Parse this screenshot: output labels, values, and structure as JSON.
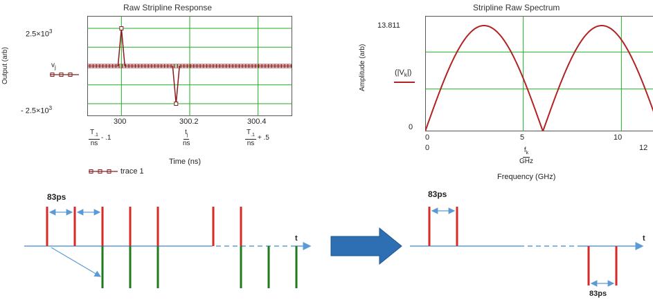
{
  "left_chart": {
    "title": "Raw Stripline Response",
    "ylabel": "Output (arb)",
    "xlabel": "Time (ns)",
    "y_top_label": "2.5×10",
    "y_top_exp": "3",
    "y_bottom_label": "- 2.5×10",
    "y_bottom_exp": "3",
    "trace_var": "v",
    "trace_var_sub": "j",
    "x_ticks": [
      "300",
      "300.2",
      "300.4"
    ],
    "x_expr_left_num": "T",
    "x_expr_left_sub": ".1",
    "x_expr_left_den": "ns",
    "x_expr_left_suffix": "- .1",
    "x_expr_mid_num": "t",
    "x_expr_mid_sub": "j",
    "x_expr_mid_den": "ns",
    "x_expr_right_num": "T",
    "x_expr_right_sub": ".1",
    "x_expr_right_den": "ns",
    "x_expr_right_suffix": "+ .5",
    "legend": "trace 1",
    "colors": {
      "grid": "#22aa22",
      "trace": "#8b1a1a",
      "frame": "#555555"
    }
  },
  "right_chart": {
    "title": "Stripline Raw Spectrum",
    "ylabel": "Amplitude (arb)",
    "xlabel": "Frequency (GHz)",
    "y_top_label": "13.811",
    "y_bottom_label": "0",
    "trace_expr": "(|V",
    "trace_expr_sub": "k",
    "trace_expr_end": "|)",
    "x_ticks": [
      "0",
      "5",
      "10"
    ],
    "x_left_bound": "0",
    "x_right_bound": "12",
    "x_expr_num": "f",
    "x_expr_sub": "k",
    "x_expr_den": "GHz",
    "colors": {
      "grid": "#22aa22",
      "trace": "#b22222",
      "frame": "#555555"
    }
  },
  "chart_data": [
    {
      "type": "line",
      "title": "Raw Stripline Response",
      "xlabel": "Time (ns)",
      "ylabel": "Output (arb)",
      "xlim": [
        299.9,
        300.5
      ],
      "ylim": [
        -2500,
        2500
      ],
      "series": [
        {
          "name": "trace 1",
          "x": [
            299.9,
            299.99,
            300.0,
            300.01,
            300.15,
            300.16,
            300.17,
            300.5
          ],
          "y": [
            0,
            0,
            2500,
            0,
            0,
            -2500,
            0,
            0
          ]
        }
      ]
    },
    {
      "type": "line",
      "title": "Stripline Raw Spectrum",
      "xlabel": "Frequency (GHz)",
      "ylabel": "Amplitude (arb)",
      "xlim": [
        0,
        12
      ],
      "ylim": [
        0,
        13.811
      ],
      "series": [
        {
          "name": "(|V_k|)",
          "x": [
            0,
            1,
            2,
            3,
            4,
            5,
            6,
            7,
            8,
            9,
            10,
            11,
            12
          ],
          "y": [
            0,
            6.9,
            11.96,
            13.81,
            11.96,
            6.9,
            0,
            6.9,
            11.96,
            13.81,
            11.96,
            6.9,
            0
          ]
        }
      ]
    }
  ],
  "diagram_left": {
    "label_83ps": "83ps",
    "t_label": "t"
  },
  "diagram_right": {
    "label_83ps_top": "83ps",
    "label_83ps_bottom": "83ps",
    "t_label": "t"
  },
  "colors": {
    "pulse_red": "#d42a2a",
    "pulse_green": "#1e7a1e",
    "axis_blue": "#5b9bd5",
    "arrow_fill": "#2e6fb3"
  }
}
